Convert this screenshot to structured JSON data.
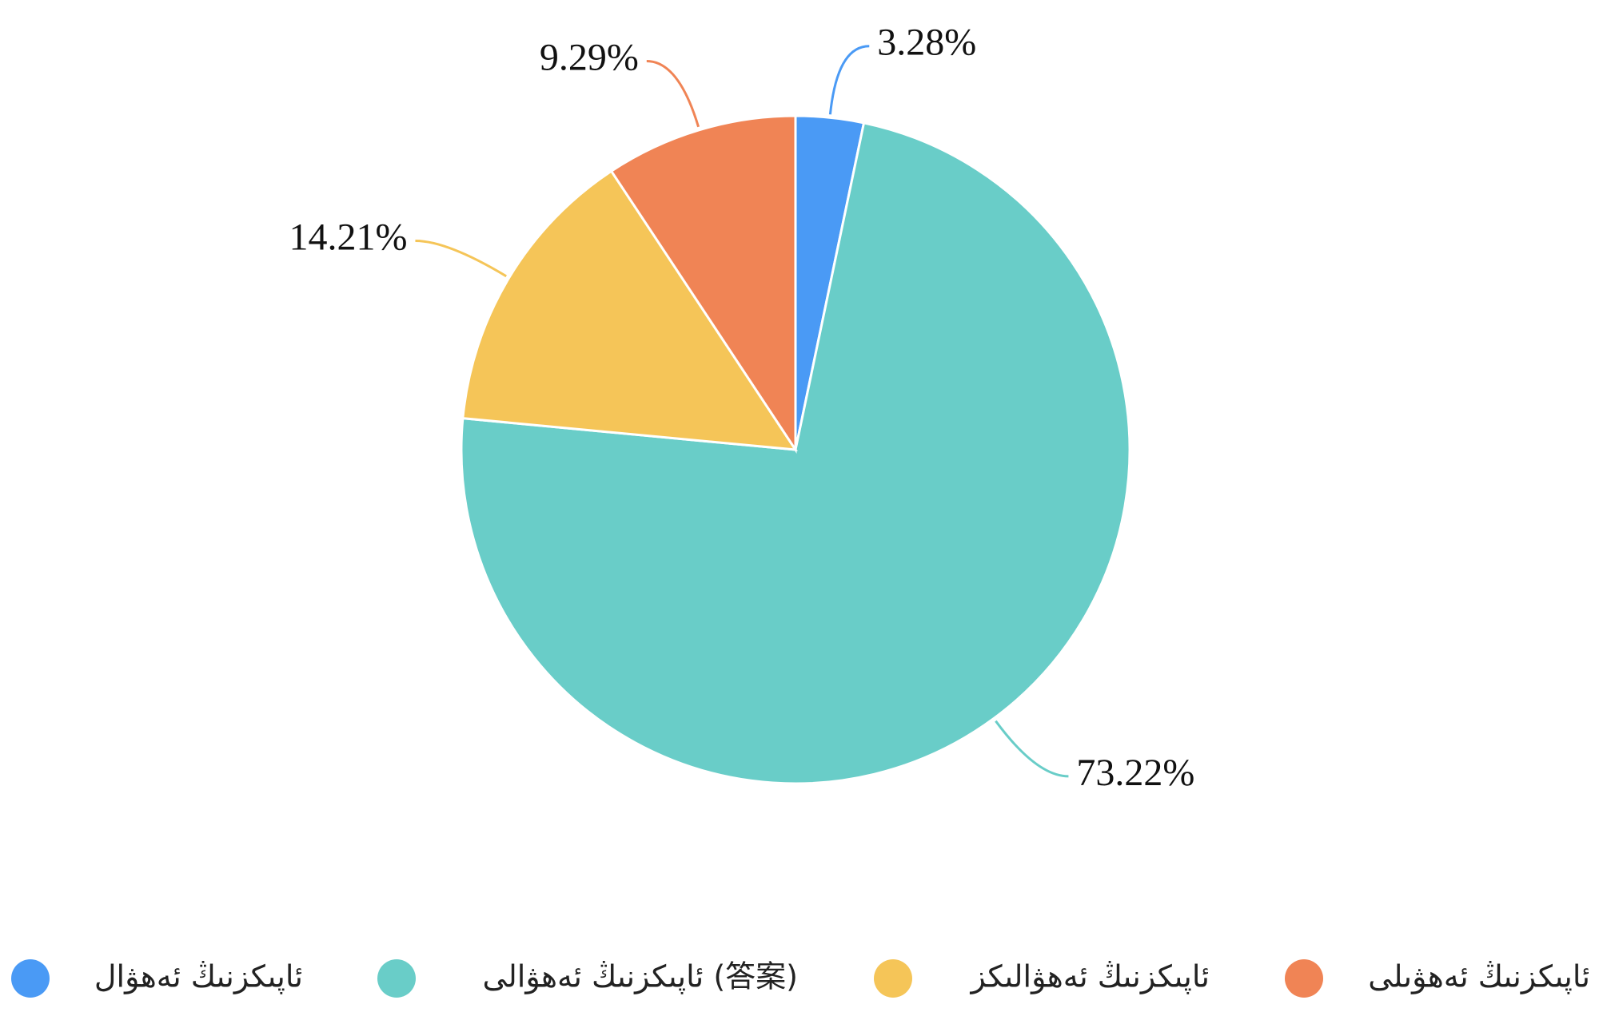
{
  "chart_data": {
    "type": "pie",
    "categories": [
      "ئاپىكزنىڭ ئەھۋال",
      "ئاپىكزنىڭ ئەھۋالى (答案)",
      "ئاپىكزنىڭ ئەھۋالىكز",
      "ئاپىكزنىڭ ئەھۋىلى"
    ],
    "values": [
      3.28,
      73.22,
      14.21,
      9.29
    ],
    "value_labels": [
      "3.28%",
      "73.22%",
      "14.21%",
      "9.29%"
    ],
    "colors": [
      "#4a9af5",
      "#69cdc8",
      "#f5c558",
      "#f08455"
    ],
    "legend": "bottom"
  }
}
